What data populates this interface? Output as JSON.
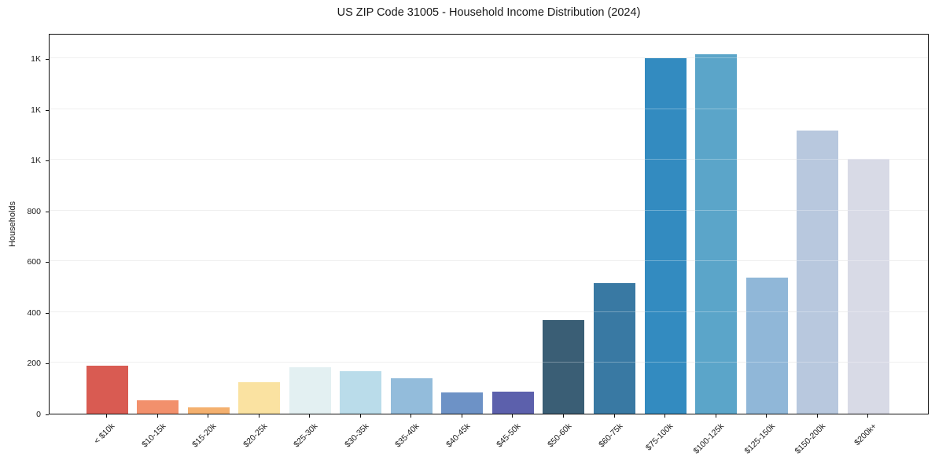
{
  "chart_data": {
    "type": "bar",
    "title": "US ZIP Code 31005 - Household Income Distribution (2024)",
    "xlabel": "",
    "ylabel": "Households",
    "categories": [
      "< $10k",
      "$10-15k",
      "$15-20k",
      "$20-25k",
      "$25-30k",
      "$30-35k",
      "$35-40k",
      "$40-45k",
      "$45-50k",
      "$50-60k",
      "$60-75k",
      "$75-100k",
      "$100-125k",
      "$125-150k",
      "$150-200k",
      "$200k+"
    ],
    "values": [
      190,
      54,
      25,
      124,
      183,
      167,
      141,
      83,
      86,
      368,
      514,
      1400,
      1415,
      535,
      1115,
      1005
    ],
    "bar_colors": [
      "#d95b52",
      "#f2906c",
      "#f4b06e",
      "#fae2a1",
      "#e3f0f2",
      "#badcea",
      "#93bcdb",
      "#6d92c6",
      "#5c60ac",
      "#3a5e75",
      "#3979a3",
      "#338bc0",
      "#5ba5c9",
      "#90b7d8",
      "#b8c8de",
      "#d8dae6"
    ],
    "ylim": [
      0,
      1500
    ],
    "yticks": {
      "values": [
        0,
        200,
        400,
        600,
        800,
        1000,
        1200,
        1400
      ],
      "labels": [
        "0",
        "200",
        "400",
        "600",
        "800",
        "1K",
        "1K",
        "1K"
      ]
    },
    "grid": true,
    "legend": false,
    "grid_color": "#e8e8e8",
    "axis_color": "#111111",
    "text_color": "#1a1a1a"
  }
}
